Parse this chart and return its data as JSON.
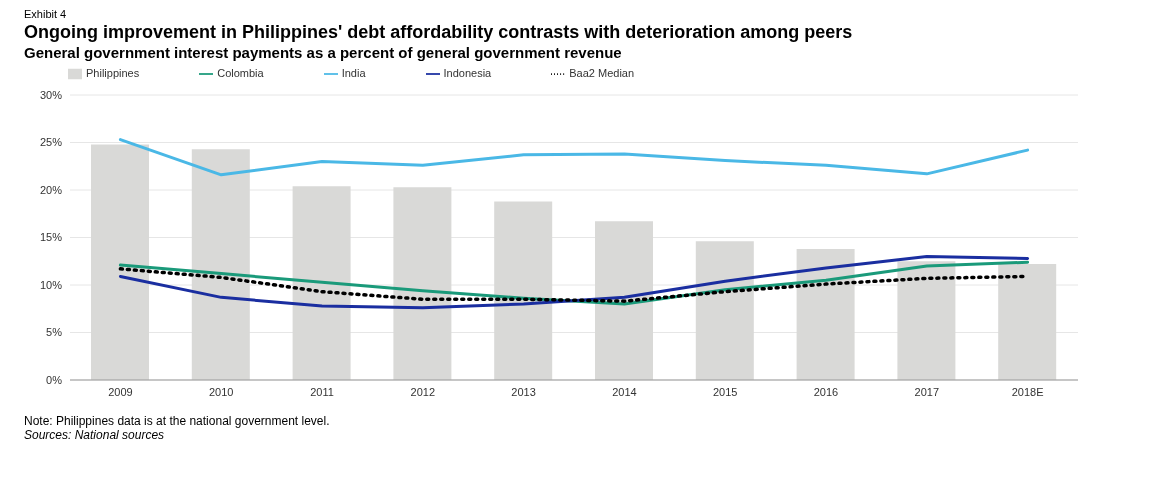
{
  "chart_data": {
    "type": "bar",
    "title": "Ongoing improvement in Philippines' debt affordability contrasts with deterioration among peers",
    "subtitle": "General government interest payments as a percent of general government revenue",
    "annotations": [
      "Exhibit 4",
      "Note: Philippines data is at the national government level.",
      "Sources: National sources"
    ],
    "categories": [
      "2009",
      "2010",
      "2011",
      "2012",
      "2013",
      "2014",
      "2015",
      "2016",
      "2017",
      "2018E"
    ],
    "series": [
      {
        "name": "Philippines",
        "color": "#d9d9d7",
        "values": [
          24.8,
          24.3,
          20.4,
          20.3,
          18.8,
          16.7,
          14.6,
          13.8,
          12.5,
          12.2
        ]
      },
      {
        "name": "Colombia",
        "type": "line",
        "color": "#1a9a7a",
        "values": [
          12.1,
          11.2,
          10.3,
          9.4,
          8.6,
          8.0,
          9.5,
          10.5,
          12.0,
          12.4
        ]
      },
      {
        "name": "India",
        "type": "line",
        "color": "#4ab8e6",
        "values": [
          25.3,
          21.6,
          23.0,
          22.6,
          23.7,
          23.8,
          23.1,
          22.6,
          21.7,
          24.2
        ]
      },
      {
        "name": "Indonesia",
        "type": "line",
        "color": "#1a2ea0",
        "values": [
          10.9,
          8.7,
          7.8,
          7.6,
          8.0,
          8.7,
          10.4,
          11.8,
          13.0,
          12.8
        ]
      },
      {
        "name": "Baa2 Median",
        "type": "line",
        "color": "#000000",
        "line_style": "dotted",
        "values": [
          11.7,
          10.8,
          9.3,
          8.5,
          8.5,
          8.3,
          9.3,
          10.1,
          10.7,
          10.9
        ]
      }
    ],
    "ylim": [
      0,
      30
    ],
    "yticks": [
      {
        "value": 0,
        "label": "0%"
      },
      {
        "value": 5,
        "label": "5%"
      },
      {
        "value": 10,
        "label": "10%"
      },
      {
        "value": 15,
        "label": "15%"
      },
      {
        "value": 20,
        "label": "20%"
      },
      {
        "value": 25,
        "label": "25%"
      },
      {
        "value": 30,
        "label": "30%"
      }
    ],
    "grid": "y",
    "legend": "top",
    "marker": "none"
  }
}
